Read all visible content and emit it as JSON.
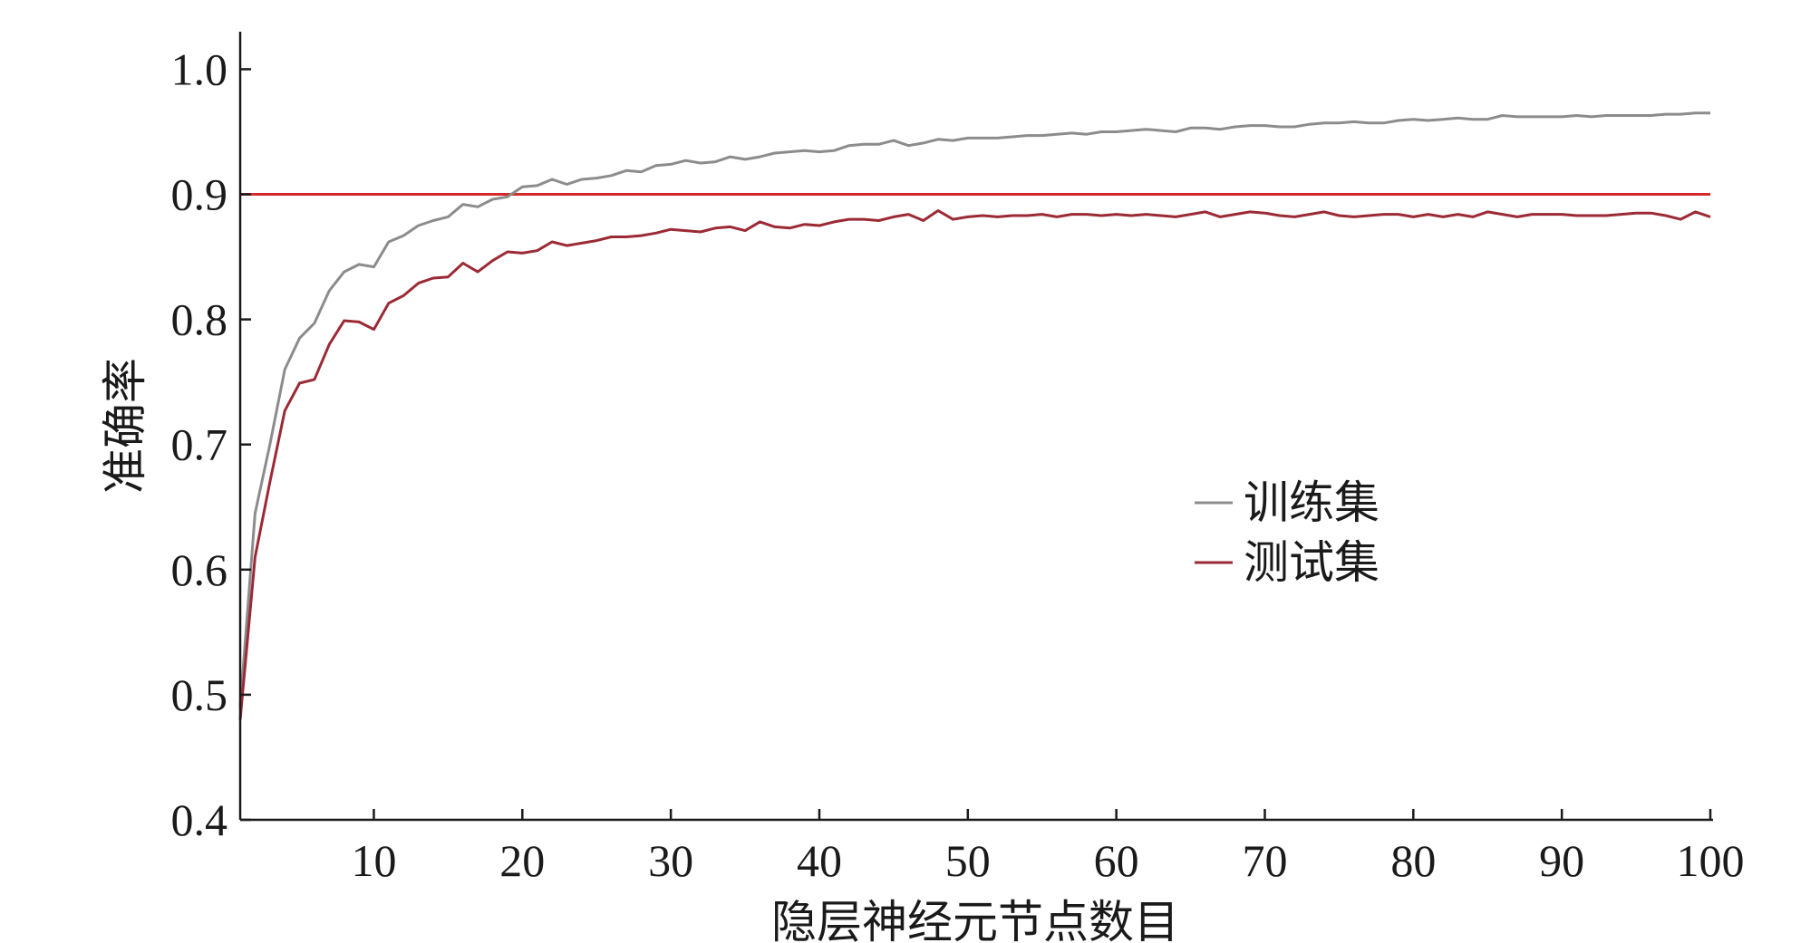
{
  "chart_data": {
    "type": "line",
    "xlabel": "隐层神经元节点数目",
    "ylabel": "准确率",
    "xlim": [
      1,
      100
    ],
    "ylim": [
      0.4,
      1.03
    ],
    "xticks": [
      10,
      20,
      30,
      40,
      50,
      60,
      70,
      80,
      90,
      100
    ],
    "xtick_labels": [
      "10",
      "20",
      "30",
      "40",
      "50",
      "60",
      "70",
      "80",
      "90",
      "100"
    ],
    "yticks": [
      0.4,
      0.5,
      0.6,
      0.7,
      0.8,
      0.9,
      1.0
    ],
    "ytick_labels": [
      "0.4",
      "0.5",
      "0.6",
      "0.7",
      "0.8",
      "0.9",
      "1.0"
    ],
    "grid": false,
    "legend_position": "center-right",
    "reference_line": {
      "y": 0.9,
      "color": "#d42a2a"
    },
    "series": [
      {
        "name": "训练集",
        "color": "#8c8c8c",
        "x": [
          1,
          2,
          3,
          4,
          5,
          6,
          7,
          8,
          9,
          10,
          11,
          12,
          13,
          14,
          15,
          16,
          17,
          18,
          19,
          20,
          21,
          22,
          23,
          24,
          25,
          26,
          27,
          28,
          29,
          30,
          31,
          32,
          33,
          34,
          35,
          36,
          37,
          38,
          39,
          40,
          41,
          42,
          43,
          44,
          45,
          46,
          47,
          48,
          49,
          50,
          51,
          52,
          53,
          54,
          55,
          56,
          57,
          58,
          59,
          60,
          61,
          62,
          63,
          64,
          65,
          66,
          67,
          68,
          69,
          70,
          71,
          72,
          73,
          74,
          75,
          76,
          77,
          78,
          79,
          80,
          81,
          82,
          83,
          84,
          85,
          86,
          87,
          88,
          89,
          90,
          91,
          92,
          93,
          94,
          95,
          96,
          97,
          98,
          99,
          100
        ],
        "values": [
          0.49,
          0.645,
          0.7,
          0.76,
          0.785,
          0.797,
          0.823,
          0.838,
          0.844,
          0.842,
          0.862,
          0.867,
          0.875,
          0.879,
          0.882,
          0.892,
          0.89,
          0.896,
          0.898,
          0.906,
          0.907,
          0.912,
          0.908,
          0.912,
          0.913,
          0.915,
          0.919,
          0.918,
          0.923,
          0.924,
          0.927,
          0.925,
          0.926,
          0.93,
          0.928,
          0.93,
          0.933,
          0.934,
          0.935,
          0.934,
          0.935,
          0.939,
          0.94,
          0.94,
          0.943,
          0.939,
          0.941,
          0.944,
          0.943,
          0.945,
          0.945,
          0.945,
          0.946,
          0.947,
          0.947,
          0.948,
          0.949,
          0.948,
          0.95,
          0.95,
          0.951,
          0.952,
          0.951,
          0.95,
          0.953,
          0.953,
          0.952,
          0.954,
          0.955,
          0.955,
          0.954,
          0.954,
          0.956,
          0.957,
          0.957,
          0.958,
          0.957,
          0.957,
          0.959,
          0.96,
          0.959,
          0.96,
          0.961,
          0.96,
          0.96,
          0.963,
          0.962,
          0.962,
          0.962,
          0.962,
          0.963,
          0.962,
          0.963,
          0.963,
          0.963,
          0.963,
          0.964,
          0.964,
          0.965,
          0.965
        ]
      },
      {
        "name": "测试集",
        "color": "#9b2a35",
        "x": [
          1,
          2,
          3,
          4,
          5,
          6,
          7,
          8,
          9,
          10,
          11,
          12,
          13,
          14,
          15,
          16,
          17,
          18,
          19,
          20,
          21,
          22,
          23,
          24,
          25,
          26,
          27,
          28,
          29,
          30,
          31,
          32,
          33,
          34,
          35,
          36,
          37,
          38,
          39,
          40,
          41,
          42,
          43,
          44,
          45,
          46,
          47,
          48,
          49,
          50,
          51,
          52,
          53,
          54,
          55,
          56,
          57,
          58,
          59,
          60,
          61,
          62,
          63,
          64,
          65,
          66,
          67,
          68,
          69,
          70,
          71,
          72,
          73,
          74,
          75,
          76,
          77,
          78,
          79,
          80,
          81,
          82,
          83,
          84,
          85,
          86,
          87,
          88,
          89,
          90,
          91,
          92,
          93,
          94,
          95,
          96,
          97,
          98,
          99,
          100
        ],
        "values": [
          0.48,
          0.61,
          0.67,
          0.727,
          0.749,
          0.752,
          0.78,
          0.799,
          0.798,
          0.792,
          0.813,
          0.819,
          0.829,
          0.833,
          0.834,
          0.845,
          0.838,
          0.847,
          0.854,
          0.853,
          0.855,
          0.862,
          0.859,
          0.861,
          0.863,
          0.866,
          0.866,
          0.867,
          0.869,
          0.872,
          0.871,
          0.87,
          0.873,
          0.874,
          0.871,
          0.878,
          0.874,
          0.873,
          0.876,
          0.875,
          0.878,
          0.88,
          0.88,
          0.879,
          0.882,
          0.884,
          0.879,
          0.887,
          0.88,
          0.882,
          0.883,
          0.882,
          0.883,
          0.883,
          0.884,
          0.882,
          0.884,
          0.884,
          0.883,
          0.884,
          0.883,
          0.884,
          0.883,
          0.882,
          0.884,
          0.886,
          0.882,
          0.884,
          0.886,
          0.885,
          0.883,
          0.882,
          0.884,
          0.886,
          0.883,
          0.882,
          0.883,
          0.884,
          0.884,
          0.882,
          0.884,
          0.882,
          0.884,
          0.882,
          0.886,
          0.884,
          0.882,
          0.884,
          0.884,
          0.884,
          0.883,
          0.883,
          0.883,
          0.884,
          0.885,
          0.885,
          0.883,
          0.88,
          0.886,
          0.882
        ]
      }
    ]
  }
}
